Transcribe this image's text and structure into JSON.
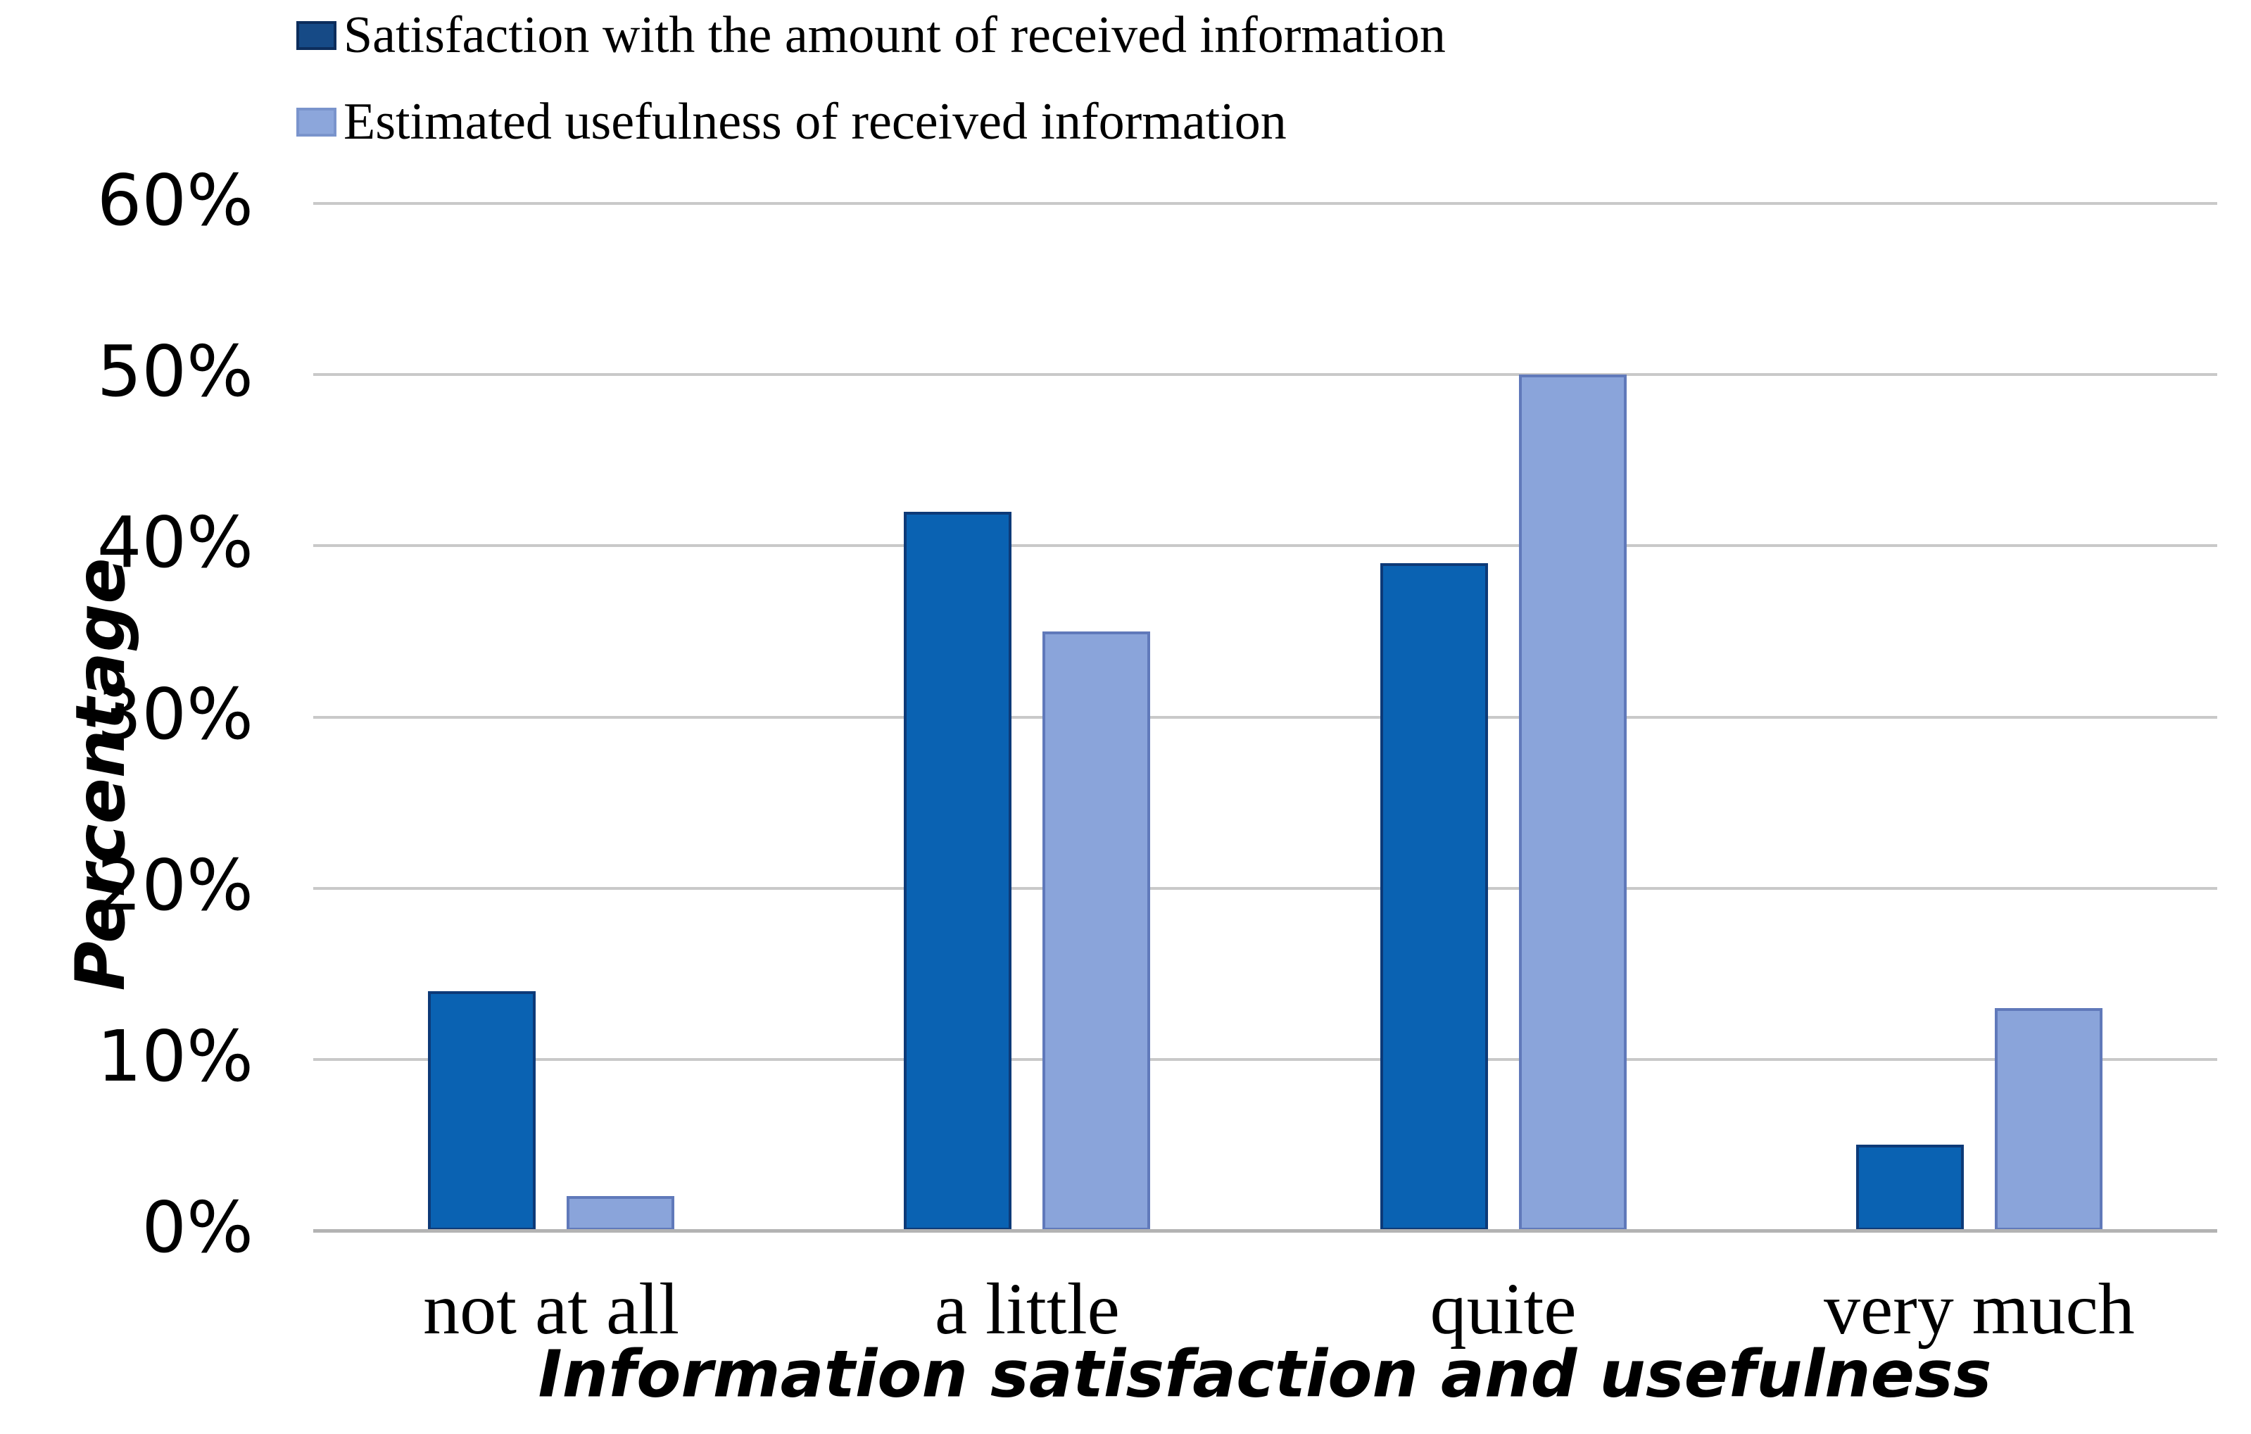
{
  "chart_data": {
    "type": "bar",
    "title": "",
    "categories": [
      "not at all",
      "a little",
      "quite",
      "very much"
    ],
    "series": [
      {
        "name": "Satisfaction with the amount of received information",
        "values": [
          14,
          42,
          39,
          5
        ],
        "fill": "#0a62b2",
        "border": "#0d3a78"
      },
      {
        "name": "Estimated usefulness of received information",
        "values": [
          2,
          35,
          50,
          13
        ],
        "fill": "#8aa4da",
        "border": "#6079ba"
      }
    ],
    "legend_swatches": [
      {
        "fill": "#164a86",
        "border": "#0c2d5c"
      },
      {
        "fill": "#8ca6db",
        "border": "#7a94cc"
      }
    ],
    "ylabel": "Percentage",
    "xlabel": "Information satisfaction and usefulness",
    "ylim": [
      0,
      60
    ],
    "y_tick_step": 10,
    "y_ticks": [
      "0%",
      "10%",
      "20%",
      "30%",
      "40%",
      "50%",
      "60%"
    ],
    "grid": true,
    "legend_position": "top-left",
    "colors": {
      "gridline": "#c9c9c9",
      "baseline": "#b3b3b3",
      "background": "#ffffff",
      "text": "#000000"
    }
  }
}
